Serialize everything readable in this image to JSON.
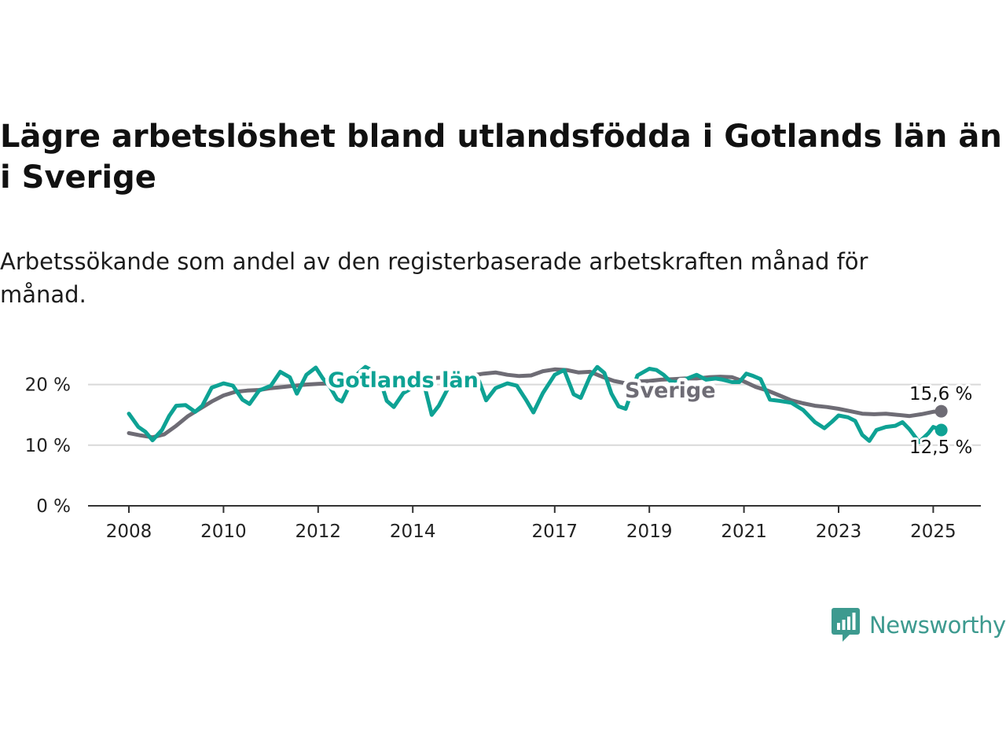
{
  "title": "Lägre arbetslöshet bland utlandsfödda i Gotlands län än i Sverige",
  "subtitle": "Arbetssökande som andel av den registerbaserade arbetskraften månad för månad.",
  "brand": {
    "name": "Newsworthy",
    "color": "#3d9a8f"
  },
  "chart_data": {
    "type": "line",
    "ylim": [
      0,
      25
    ],
    "y_ticks": [
      0,
      10,
      20
    ],
    "y_tick_labels": [
      "0 %",
      "10 %",
      "20 %"
    ],
    "x_ticks": [
      2008,
      2010,
      2012,
      2014,
      2017,
      2019,
      2021,
      2023,
      2025
    ],
    "x_tick_labels": [
      "2008",
      "2010",
      "2012",
      "2014",
      "2017",
      "2019",
      "2021",
      "2023",
      "2025"
    ],
    "grid": "horizontal",
    "series": [
      {
        "name": "Sverige",
        "color": "#6e6c75",
        "end_label": "15,6 %",
        "x": [
          2008.0,
          2008.25,
          2008.5,
          2008.75,
          2009.0,
          2009.25,
          2009.5,
          2009.75,
          2010.0,
          2010.25,
          2010.5,
          2010.75,
          2011.0,
          2011.25,
          2011.5,
          2011.75,
          2012.0,
          2012.25,
          2012.5,
          2012.75,
          2013.0,
          2013.25,
          2013.5,
          2013.75,
          2014.0,
          2014.25,
          2014.5,
          2014.75,
          2015.0,
          2015.25,
          2015.5,
          2015.75,
          2016.0,
          2016.25,
          2016.5,
          2016.75,
          2017.0,
          2017.25,
          2017.5,
          2017.75,
          2018.0,
          2018.25,
          2018.5,
          2018.75,
          2019.0,
          2019.25,
          2019.5,
          2019.75,
          2020.0,
          2020.25,
          2020.5,
          2020.75,
          2021.0,
          2021.25,
          2021.5,
          2021.75,
          2022.0,
          2022.25,
          2022.5,
          2022.75,
          2023.0,
          2023.25,
          2023.5,
          2023.75,
          2024.0,
          2024.25,
          2024.5,
          2024.75,
          2025.0,
          2025.17
        ],
        "y": [
          12.0,
          11.6,
          11.3,
          11.8,
          13.2,
          14.8,
          16.0,
          17.2,
          18.2,
          18.8,
          19.0,
          19.1,
          19.4,
          19.6,
          19.8,
          20.0,
          20.1,
          20.2,
          20.3,
          20.4,
          20.5,
          20.6,
          20.7,
          20.6,
          20.8,
          21.0,
          21.1,
          21.2,
          21.3,
          21.5,
          21.8,
          22.0,
          21.6,
          21.4,
          21.5,
          22.2,
          22.5,
          22.4,
          22.0,
          22.1,
          21.3,
          20.6,
          20.2,
          20.5,
          20.6,
          20.8,
          20.9,
          21.0,
          21.0,
          21.2,
          21.3,
          21.2,
          20.5,
          19.6,
          19.0,
          18.2,
          17.4,
          16.9,
          16.5,
          16.3,
          16.0,
          15.6,
          15.2,
          15.1,
          15.2,
          15.0,
          14.8,
          15.1,
          15.5,
          15.6
        ]
      },
      {
        "name": "Gotlands län",
        "color": "#0ea294",
        "end_label": "12,5 %",
        "x": [
          2008.0,
          2008.2,
          2008.35,
          2008.5,
          2008.7,
          2008.85,
          2009.0,
          2009.2,
          2009.4,
          2009.55,
          2009.75,
          2010.0,
          2010.2,
          2010.4,
          2010.55,
          2010.75,
          2011.0,
          2011.2,
          2011.4,
          2011.55,
          2011.75,
          2011.95,
          2012.1,
          2012.25,
          2012.4,
          2012.5,
          2012.75,
          2013.0,
          2013.15,
          2013.3,
          2013.45,
          2013.6,
          2013.8,
          2014.0,
          2014.2,
          2014.4,
          2014.55,
          2014.75,
          2015.0,
          2015.2,
          2015.4,
          2015.55,
          2015.75,
          2016.0,
          2016.2,
          2016.4,
          2016.55,
          2016.75,
          2017.0,
          2017.2,
          2017.4,
          2017.55,
          2017.75,
          2017.9,
          2018.05,
          2018.2,
          2018.35,
          2018.5,
          2018.75,
          2019.0,
          2019.15,
          2019.3,
          2019.45,
          2019.6,
          2019.8,
          2020.0,
          2020.2,
          2020.4,
          2020.55,
          2020.75,
          2020.9,
          2021.05,
          2021.2,
          2021.35,
          2021.55,
          2021.75,
          2022.0,
          2022.25,
          2022.5,
          2022.7,
          2022.85,
          2023.0,
          2023.2,
          2023.35,
          2023.5,
          2023.65,
          2023.8,
          2024.0,
          2024.2,
          2024.35,
          2024.5,
          2024.7,
          2024.9,
          2025.0,
          2025.17
        ],
        "y": [
          15.2,
          13.0,
          12.2,
          10.8,
          12.5,
          14.8,
          16.5,
          16.6,
          15.5,
          16.5,
          19.5,
          20.2,
          19.8,
          17.5,
          16.8,
          19.0,
          19.8,
          22.1,
          21.2,
          18.5,
          21.6,
          22.8,
          21.0,
          19.6,
          17.6,
          17.2,
          21.2,
          22.9,
          22.3,
          21.0,
          17.3,
          16.3,
          18.6,
          19.5,
          21.3,
          15.0,
          16.5,
          19.5,
          21.2,
          21.0,
          20.6,
          17.4,
          19.4,
          20.2,
          19.8,
          17.4,
          15.4,
          18.6,
          21.6,
          22.4,
          18.4,
          17.8,
          21.4,
          22.9,
          21.9,
          18.5,
          16.4,
          16.0,
          21.5,
          22.6,
          22.4,
          21.6,
          20.5,
          20.4,
          21.0,
          21.6,
          20.8,
          21.0,
          20.8,
          20.4,
          20.4,
          21.8,
          21.4,
          20.9,
          17.5,
          17.3,
          17.0,
          15.8,
          13.8,
          12.8,
          13.8,
          14.9,
          14.6,
          14.0,
          11.7,
          10.7,
          12.5,
          13.0,
          13.2,
          13.8,
          12.6,
          10.5,
          12.0,
          13.0,
          12.5
        ]
      }
    ]
  }
}
